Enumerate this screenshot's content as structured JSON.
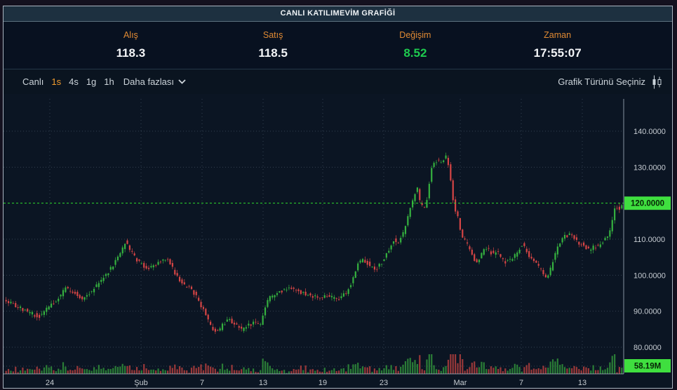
{
  "title": "CANLI KATILIMEVİM GRAFİĞİ",
  "quote": {
    "fields": [
      {
        "id": "alis",
        "label": "Alış",
        "value": "118.3",
        "green": false
      },
      {
        "id": "satis",
        "label": "Satış",
        "value": "118.5",
        "green": false
      },
      {
        "id": "degisim",
        "label": "Değişim",
        "value": "8.52",
        "green": true
      },
      {
        "id": "zaman",
        "label": "Zaman",
        "value": "17:55:07",
        "green": false
      }
    ]
  },
  "toolbar": {
    "intervals": [
      {
        "label": "Canlı",
        "active": false
      },
      {
        "label": "1s",
        "active": true
      },
      {
        "label": "4s",
        "active": false
      },
      {
        "label": "1g",
        "active": false
      },
      {
        "label": "1h",
        "active": false
      }
    ],
    "more_label": "Daha fazlası",
    "chart_type_label": "Grafik Türünü Seçiniz"
  },
  "chart_data": {
    "type": "candlestick",
    "has_volume_pane": true,
    "grid": true,
    "y_axis": {
      "min": 80,
      "max": 140,
      "tick_values": [
        140,
        130,
        120,
        110,
        100,
        90,
        80
      ],
      "tick_labels": [
        "140.0000",
        "130.0000",
        "120.0000",
        "110.0000",
        "100.0000",
        "90.0000",
        "80.0000"
      ]
    },
    "x_axis": {
      "ticks": [
        {
          "label": "24",
          "px": 71
        },
        {
          "label": "Şub",
          "px": 201
        },
        {
          "label": "7",
          "px": 288
        },
        {
          "label": "13",
          "px": 375
        },
        {
          "label": "19",
          "px": 460
        },
        {
          "label": "23",
          "px": 547
        },
        {
          "label": "Mar",
          "px": 656
        },
        {
          "label": "7",
          "px": 743
        },
        {
          "label": "13",
          "px": 830
        }
      ]
    },
    "reference_price": 120,
    "reference_price_label": "120.0000",
    "volume_badge_label": "58.19M",
    "candle_count": 260,
    "seed": 42,
    "price_path": [
      [
        8,
        93
      ],
      [
        25,
        91.5
      ],
      [
        45,
        89.5
      ],
      [
        58,
        88.5
      ],
      [
        70,
        91
      ],
      [
        82,
        93
      ],
      [
        95,
        96.5
      ],
      [
        105,
        95.5
      ],
      [
        118,
        93.5
      ],
      [
        132,
        95.5
      ],
      [
        148,
        99
      ],
      [
        162,
        102.5
      ],
      [
        175,
        107
      ],
      [
        181,
        109.8
      ],
      [
        188,
        106.5
      ],
      [
        200,
        103.5
      ],
      [
        212,
        101.5
      ],
      [
        222,
        102.5
      ],
      [
        232,
        104
      ],
      [
        242,
        104.5
      ],
      [
        252,
        100
      ],
      [
        262,
        97.5
      ],
      [
        272,
        96.5
      ],
      [
        282,
        94
      ],
      [
        292,
        90
      ],
      [
        302,
        86
      ],
      [
        310,
        83.8
      ],
      [
        318,
        86
      ],
      [
        328,
        88
      ],
      [
        338,
        86
      ],
      [
        348,
        84.8
      ],
      [
        356,
        86
      ],
      [
        366,
        87
      ],
      [
        374,
        86.2
      ],
      [
        379,
        91
      ],
      [
        385,
        93.5
      ],
      [
        395,
        94.5
      ],
      [
        405,
        96
      ],
      [
        415,
        96.5
      ],
      [
        425,
        95.5
      ],
      [
        435,
        94.8
      ],
      [
        445,
        94.2
      ],
      [
        455,
        93.8
      ],
      [
        465,
        94.5
      ],
      [
        475,
        93.8
      ],
      [
        485,
        93.6
      ],
      [
        495,
        95
      ],
      [
        503,
        98
      ],
      [
        510,
        102.5
      ],
      [
        518,
        104.5
      ],
      [
        528,
        103
      ],
      [
        538,
        101.8
      ],
      [
        546,
        103.5
      ],
      [
        554,
        106.5
      ],
      [
        562,
        109.8
      ],
      [
        570,
        109
      ],
      [
        578,
        112.5
      ],
      [
        584,
        117
      ],
      [
        590,
        120.5
      ],
      [
        596,
        124.5
      ],
      [
        601,
        119.5
      ],
      [
        606,
        118.5
      ],
      [
        611,
        122
      ],
      [
        616,
        129
      ],
      [
        621,
        131.8
      ],
      [
        627,
        131.5
      ],
      [
        633,
        132
      ],
      [
        639,
        133.2
      ],
      [
        643,
        128
      ],
      [
        647,
        121
      ],
      [
        651,
        118
      ],
      [
        655,
        115.5
      ],
      [
        659,
        111
      ],
      [
        664,
        109.5
      ],
      [
        669,
        108
      ],
      [
        675,
        105.5
      ],
      [
        681,
        103.2
      ],
      [
        687,
        105
      ],
      [
        692,
        108
      ],
      [
        698,
        107
      ],
      [
        704,
        105.8
      ],
      [
        710,
        106.5
      ],
      [
        716,
        104.8
      ],
      [
        722,
        103.6
      ],
      [
        728,
        104.2
      ],
      [
        734,
        105
      ],
      [
        740,
        107
      ],
      [
        746,
        108.5
      ],
      [
        752,
        106.8
      ],
      [
        758,
        104.8
      ],
      [
        764,
        103.8
      ],
      [
        770,
        102
      ],
      [
        776,
        100.5
      ],
      [
        781,
        99.2
      ],
      [
        786,
        101.5
      ],
      [
        792,
        105.5
      ],
      [
        798,
        108.5
      ],
      [
        804,
        110.5
      ],
      [
        810,
        110.8
      ],
      [
        816,
        111.5
      ],
      [
        822,
        110
      ],
      [
        828,
        108.8
      ],
      [
        834,
        108.2
      ],
      [
        840,
        107.2
      ],
      [
        846,
        107.6
      ],
      [
        852,
        108
      ],
      [
        858,
        108.4
      ],
      [
        864,
        110
      ],
      [
        869,
        111
      ],
      [
        873,
        113.5
      ],
      [
        877,
        118.5
      ],
      [
        880,
        120
      ],
      [
        883,
        117.5
      ],
      [
        886,
        119.5
      ]
    ]
  },
  "colors": {
    "up": "#35b13f",
    "down": "#d64545",
    "vol_up": "#2e8838",
    "vol_down": "#a83c3c",
    "grid": "rgba(158,180,202,0.28)",
    "axis_line": "rgba(173,190,204,0.75)",
    "axis_text": "#c6ccd2",
    "ref_green": "#2edd2e",
    "badge_bg": "#3fdf3f",
    "badge_text": "#062506",
    "accent_orange": "#f39c2d"
  }
}
